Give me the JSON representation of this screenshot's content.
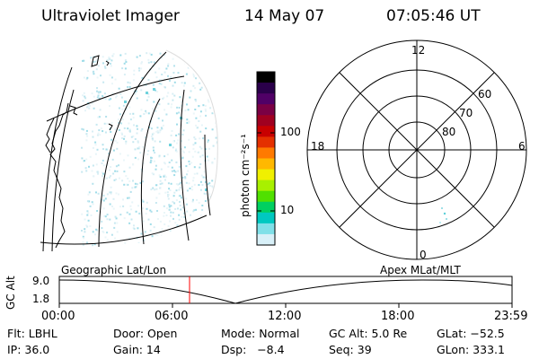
{
  "header": {
    "instrument": "Ultraviolet Imager",
    "date": "14 May 07",
    "time": "07:05:46 UT"
  },
  "colorbar": {
    "unit_label": "photon cm⁻²s⁻¹",
    "ticks": [
      "100",
      "10"
    ],
    "colors": [
      "#000000",
      "#2a004a",
      "#500066",
      "#7a0044",
      "#a00020",
      "#c80000",
      "#e43000",
      "#ff7a00",
      "#ffb800",
      "#f0f000",
      "#a8f000",
      "#50e000",
      "#00d060",
      "#00c8c0",
      "#80e0e8",
      "#d8f0f8"
    ]
  },
  "polar_plot": {
    "mlt_labels": [
      "12",
      "18",
      "6",
      "0"
    ],
    "lat_labels": [
      "60",
      "70",
      "80"
    ]
  },
  "timeline": {
    "left_title": "Geographic Lat/Lon",
    "right_title": "Apex  MLat/MLT",
    "y_label": "GC Alt",
    "y_ticks": [
      "9.0",
      "1.8"
    ],
    "x_ticks": [
      "00:00",
      "06:00",
      "12:00",
      "18:00",
      "23:59"
    ],
    "marker_color": "#ff0000"
  },
  "info": {
    "rows": [
      [
        "Flt: LBHL",
        "Door: Open",
        "Mode: Normal",
        "GC Alt: 5.0 Re",
        "GLat: −52.5"
      ],
      [
        "IP: 36.0",
        "Gain: 14",
        "Dsp:   −8.4",
        "Seq: 39",
        "GLon: 333.1"
      ]
    ]
  }
}
